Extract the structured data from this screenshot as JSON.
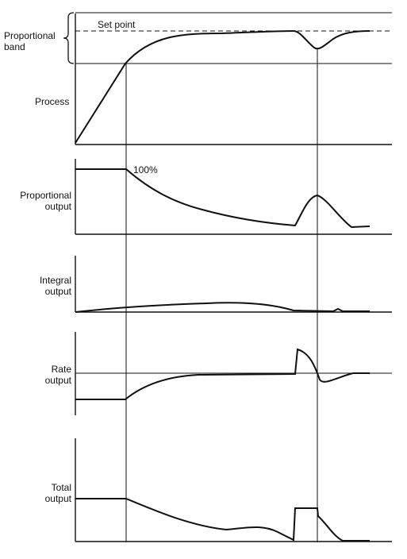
{
  "labels": {
    "proportional_band_line1": "Proportional",
    "proportional_band_line2": "band",
    "set_point": "Set point",
    "process": "Process",
    "hundred_percent": "100%",
    "proportional_output_line1": "Proportional",
    "proportional_output_line2": "output",
    "integral_output_line1": "Integral",
    "integral_output_line2": "output",
    "rate_output_line1": "Rate",
    "rate_output_line2": "output",
    "total_output_line1": "Total",
    "total_output_line2": "output"
  }
}
